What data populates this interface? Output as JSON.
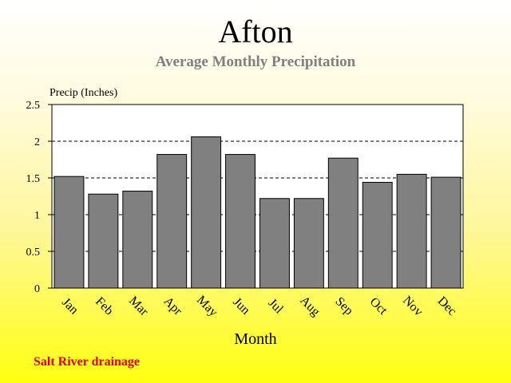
{
  "chart_data": {
    "type": "bar",
    "title": "Afton",
    "subtitle": "Average Monthly Precipitation",
    "ylabel": "Precip (Inches)",
    "xlabel": "Month",
    "categories": [
      "Jan",
      "Feb",
      "Mar",
      "Apr",
      "May",
      "Jun",
      "Jul",
      "Aug",
      "Sep",
      "Oct",
      "Nov",
      "Dec"
    ],
    "values": [
      1.52,
      1.28,
      1.32,
      1.82,
      2.06,
      1.82,
      1.22,
      1.22,
      1.77,
      1.44,
      1.55,
      1.51
    ],
    "ylim": [
      0,
      2.5
    ],
    "yticks": [
      "0",
      "0.5",
      "1",
      "1.5",
      "2",
      "2.5"
    ],
    "grid": "dashed horizontal",
    "colors": {
      "bar_fill": "#808080",
      "bar_stroke": "#000000",
      "plot_background": "#ffffff",
      "subtitle": "#808080",
      "footnote": "#e00000"
    }
  },
  "footnote": "Salt River drainage"
}
